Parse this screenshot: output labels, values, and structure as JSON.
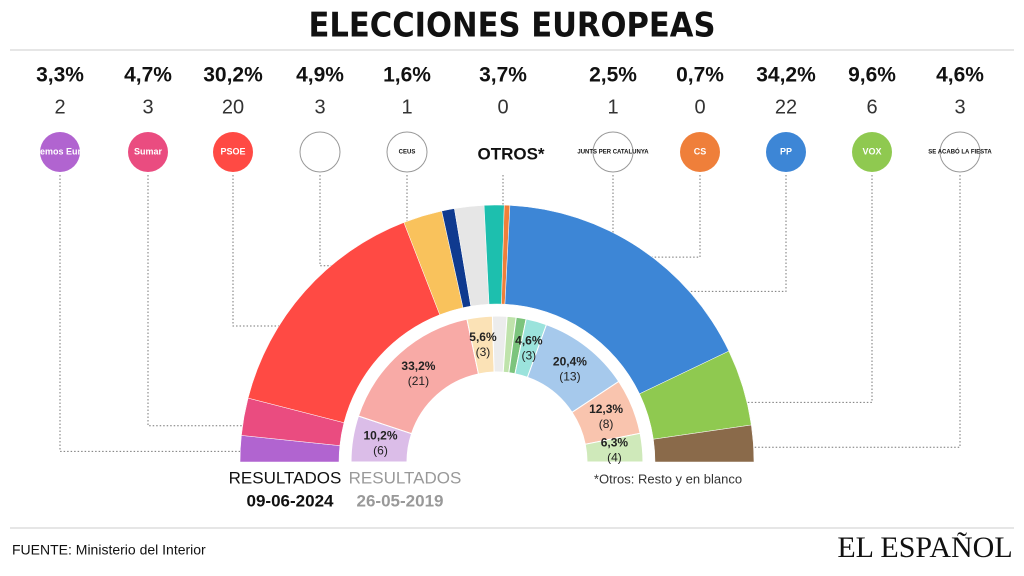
{
  "title": "ELECCIONES EUROPEAS",
  "note": "*Otros: Resto y en blanco",
  "source": "FUENTE: Ministerio del Interior",
  "brand": "EL ESPAÑOL",
  "chart_data": [
    {
      "type": "pie",
      "label": "RESULTADOS",
      "date": "09-06-2024",
      "categories": [
        "Podemos Europa",
        "Sumar",
        "PSOE",
        null,
        "CEUS",
        "OTROS*",
        "JUNTS PER CATALUNYA",
        "CS",
        "PP",
        "VOX",
        "SE ACABÓ LA FIESTA"
      ],
      "values": [
        3.3,
        4.7,
        30.2,
        4.9,
        1.6,
        3.7,
        2.5,
        0.7,
        34.2,
        9.6,
        4.6
      ],
      "value_labels": [
        "3,3%",
        "4,7%",
        "30,2%",
        "4,9%",
        "1,6%",
        "3,7%",
        "2,5%",
        "0,7%",
        "34,2%",
        "9,6%",
        "4,6%"
      ],
      "seats": [
        2,
        3,
        20,
        3,
        1,
        0,
        1,
        0,
        22,
        6,
        3
      ],
      "colors": [
        "#b164d0",
        "#ea4c80",
        "#ff4a44",
        "#f9c25c",
        "#0f3a8f",
        "#e6e6e6",
        "#1dbfae",
        "#ef7f3a",
        "#3d86d6",
        "#8fc950",
        "#8a6a4a"
      ]
    },
    {
      "type": "pie",
      "label": "RESULTADOS",
      "date": "26-05-2019",
      "values": [
        10.2,
        33.2,
        5.6,
        3.2,
        2.0,
        2.2,
        4.6,
        20.4,
        12.3,
        6.3
      ],
      "value_labels": [
        "10,2%",
        "33,2%",
        "5,6%",
        null,
        null,
        null,
        "4,6%",
        "20,4%",
        "12,3%",
        "6,3%"
      ],
      "seat_labels": [
        "(6)",
        "(21)",
        "(3)",
        null,
        null,
        null,
        "(3)",
        "(13)",
        "(8)",
        "(4)"
      ],
      "colors": [
        "#dbbde8",
        "#f8aaa6",
        "#fbe2b6",
        "#ececec",
        "#bfe3ab",
        "#7cc47d",
        "#9be3dc",
        "#a6c9ec",
        "#f9c4ae",
        "#cfe9ba"
      ]
    }
  ]
}
